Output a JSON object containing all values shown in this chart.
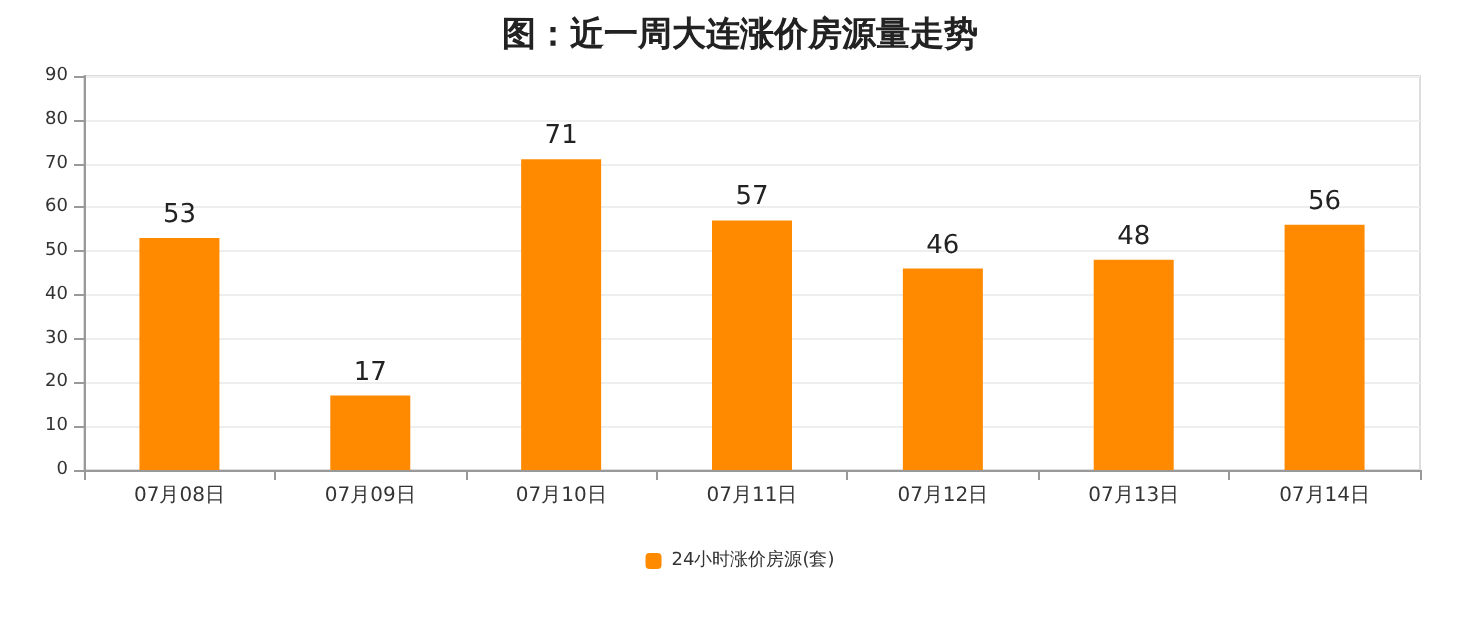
{
  "chart_data": {
    "type": "bar",
    "title": "图：近一周大连涨价房源量走势",
    "categories": [
      "07月08日",
      "07月09日",
      "07月10日",
      "07月11日",
      "07月12日",
      "07月13日",
      "07月14日"
    ],
    "series": [
      {
        "name": "24小时涨价房源(套)",
        "color": "#ff8a00",
        "values": [
          53,
          17,
          71,
          57,
          46,
          48,
          56
        ]
      }
    ],
    "ylim": [
      0,
      90
    ],
    "yticks": [
      0,
      10,
      20,
      30,
      40,
      50,
      60,
      70,
      80,
      90
    ],
    "grid": "y",
    "legend": "bottom",
    "data_labels": true
  }
}
